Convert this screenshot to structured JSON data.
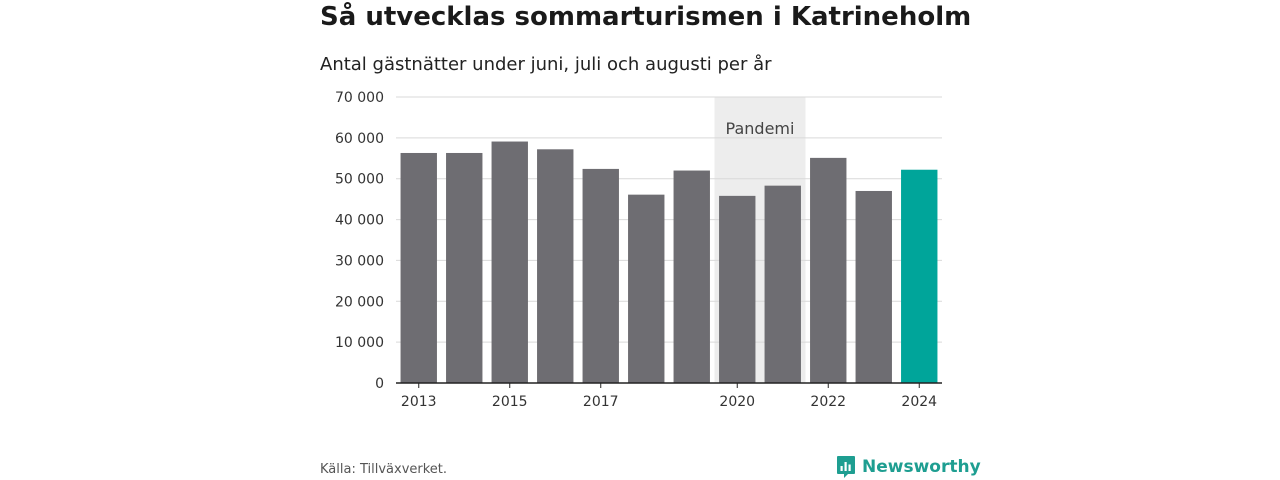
{
  "header": {
    "title": "Så utvecklas sommarturismen i Katrineholm",
    "subtitle": "Antal gästnätter under juni, juli och augusti per år"
  },
  "footer": {
    "source": "Källa: Tillväxverket.",
    "brand": "Newsworthy",
    "brand_icon": "bar-chart-logo-icon"
  },
  "colors": {
    "bar": "#6e6d72",
    "highlight": "#00a59a",
    "band": "#ededed",
    "grid": "#d9d9d9",
    "axis": "#222222",
    "brand": "#1e9e91"
  },
  "chart_data": {
    "type": "bar",
    "categories": [
      "2013",
      "2014",
      "2015",
      "2016",
      "2017",
      "2018",
      "2019",
      "2020",
      "2021",
      "2022",
      "2023",
      "2024"
    ],
    "values": [
      56300,
      56300,
      59100,
      57200,
      52400,
      46100,
      52000,
      45800,
      48300,
      55100,
      47000,
      52200
    ],
    "highlight_index": 11,
    "x_tick_labels": [
      "2013",
      "",
      "2015",
      "",
      "2017",
      "",
      "",
      "2020",
      "",
      "2022",
      "",
      "2024"
    ],
    "y_ticks": [
      0,
      10000,
      20000,
      30000,
      40000,
      50000,
      60000,
      70000
    ],
    "y_tick_labels": [
      "0",
      "10 000",
      "20 000",
      "30 000",
      "40 000",
      "50 000",
      "60 000",
      "70 000"
    ],
    "ylim": [
      0,
      70000
    ],
    "grid": true,
    "annotations": [
      {
        "label": "Pandemi",
        "from": "2020",
        "to": "2021"
      }
    ]
  }
}
